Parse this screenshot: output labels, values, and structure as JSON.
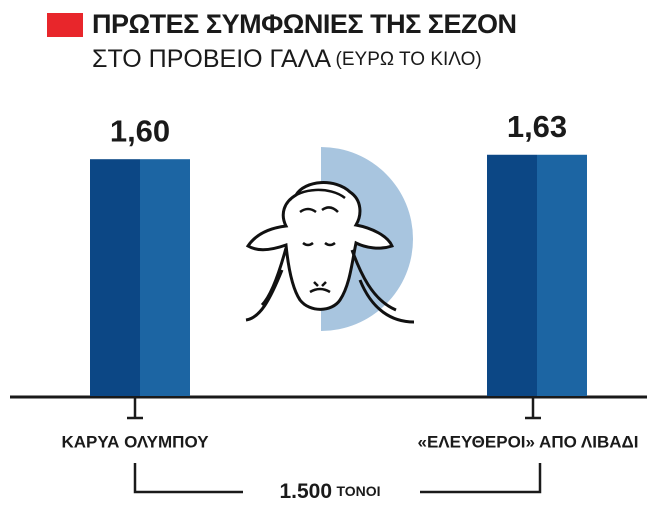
{
  "chart_data": {
    "type": "bar",
    "title": "ΠΡΩΤΕΣ ΣΥΜΦΩΝΙΕΣ ΤΗΣ ΣΕΖΟΝ",
    "subtitle": "ΣΤΟ ΠΡΟΒΕΙΟ ΓΑΛΑ",
    "unit": "(ΕΥΡΩ ΤΟ ΚΙΛΟ)",
    "categories": [
      "ΚΑΡΥΑ ΟΛΥΜΠΟΥ",
      "«ΕΛΕΥΘΕΡΟΙ» ΑΠΟ ΛΙΒΑΔΙ"
    ],
    "values": [
      1.6,
      1.63
    ],
    "value_labels": [
      "1,60",
      "1,63"
    ],
    "colors": [
      "#0c4785",
      "#1c65a3"
    ],
    "annotation": {
      "quantity": "1.500",
      "unit": "ΤΟΝΟΙ"
    }
  }
}
